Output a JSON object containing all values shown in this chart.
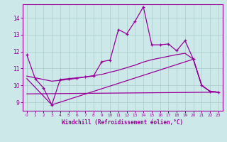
{
  "xlabel": "Windchill (Refroidissement éolien,°C)",
  "bg_color": "#cce8e8",
  "line_color": "#990099",
  "grid_color": "#aacccc",
  "x_ticks": [
    0,
    1,
    2,
    3,
    4,
    5,
    6,
    7,
    8,
    9,
    10,
    11,
    12,
    13,
    14,
    15,
    16,
    17,
    18,
    19,
    20,
    21,
    22,
    23
  ],
  "y_ticks": [
    9,
    10,
    11,
    12,
    13,
    14
  ],
  "xlim": [
    -0.5,
    23.5
  ],
  "ylim": [
    8.5,
    14.8
  ],
  "line1_x": [
    0,
    1,
    2,
    3,
    4,
    5,
    6,
    7,
    8,
    9,
    10,
    11,
    12,
    13,
    14,
    15,
    16,
    17,
    18,
    19,
    20,
    21,
    22,
    23
  ],
  "line1_y": [
    11.8,
    10.4,
    9.85,
    8.85,
    10.35,
    10.4,
    10.45,
    10.5,
    10.55,
    11.4,
    11.5,
    13.3,
    13.05,
    13.8,
    14.65,
    12.4,
    12.4,
    12.45,
    12.05,
    12.65,
    11.55,
    10.0,
    9.65,
    9.6
  ],
  "line2_x": [
    0,
    1,
    2,
    3,
    4,
    5,
    6,
    7,
    8,
    9,
    10,
    11,
    12,
    13,
    14,
    15,
    16,
    17,
    18,
    19,
    20,
    21,
    22,
    23
  ],
  "line2_y": [
    10.55,
    10.45,
    10.35,
    10.25,
    10.3,
    10.35,
    10.42,
    10.5,
    10.58,
    10.65,
    10.78,
    10.9,
    11.05,
    11.2,
    11.38,
    11.52,
    11.62,
    11.72,
    11.82,
    11.9,
    11.55,
    10.0,
    9.65,
    9.6
  ],
  "line3_x": [
    0,
    3,
    20,
    21,
    22,
    23
  ],
  "line3_y": [
    10.4,
    8.85,
    11.55,
    10.0,
    9.65,
    9.6
  ],
  "line4_x": [
    0,
    23
  ],
  "line4_y": [
    9.5,
    9.6
  ]
}
